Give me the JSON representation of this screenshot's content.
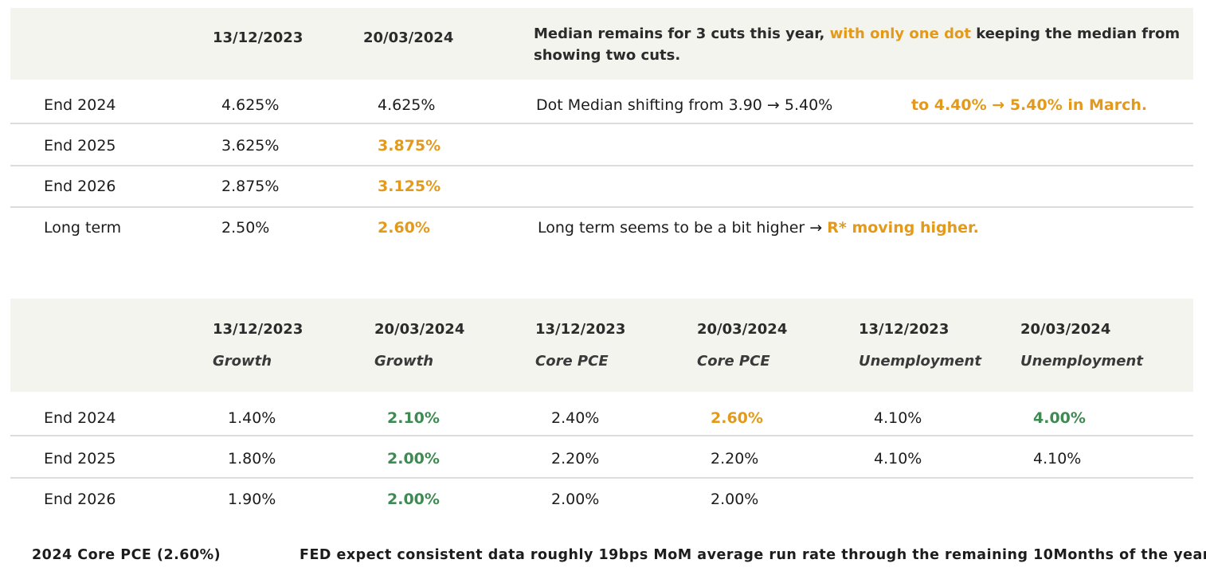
{
  "table1": {
    "headers": [
      "13/12/2023",
      "20/03/2024"
    ],
    "note_part1": "Median remains for 3 cuts this year,",
    "note_highlight": "with only one dot",
    "note_part2": "keeping the median from",
    "note_line2": "showing two cuts.",
    "rows": [
      {
        "label": "End 2024",
        "v1": "4.625%",
        "v2": "4.625%"
      },
      {
        "label": "End 2025",
        "v1": "3.625%",
        "v2": "3.875%"
      },
      {
        "label": "End 2026",
        "v1": "2.875%",
        "v2": "3.125%"
      },
      {
        "label": "Long term",
        "v1": "2.50%",
        "v2": "2.60%"
      }
    ],
    "comment_row1": "Dot Median shifting from 3.90 → 5.40%",
    "comment_row1_highlight": "to 4.40% → 5.40% in March.",
    "comment_row4": "Long term seems to be a bit higher →",
    "comment_row4_highlight": "R* moving higher."
  },
  "table2": {
    "headers": [
      {
        "date": "13/12/2023",
        "metric": "Growth"
      },
      {
        "date": "20/03/2024",
        "metric": "Growth"
      },
      {
        "date": "13/12/2023",
        "metric": "Core PCE"
      },
      {
        "date": "20/03/2024",
        "metric": "Core PCE"
      },
      {
        "date": "13/12/2023",
        "metric": "Unemployment"
      },
      {
        "date": "20/03/2024",
        "metric": "Unemployment"
      }
    ],
    "rows": [
      {
        "label": "End 2024",
        "values": [
          "1.40%",
          "2.10%",
          "2.40%",
          "2.60%",
          "4.10%",
          "4.00%"
        ]
      },
      {
        "label": "End 2025",
        "values": [
          "1.80%",
          "2.00%",
          "2.20%",
          "2.20%",
          "4.10%",
          "4.10%"
        ]
      },
      {
        "label": "End 2026",
        "values": [
          "1.90%",
          "2.00%",
          "2.00%",
          "2.00%",
          "",
          ""
        ]
      }
    ]
  },
  "footer": {
    "left": "2024 Core PCE (2.60%)",
    "right": "FED expect consistent data roughly 19bps MoM average run rate through the remaining 10Months of the year."
  },
  "colors": {
    "orange": "#e39a1b",
    "green": "#3f8a52",
    "header_band": "#f4f4ef"
  }
}
